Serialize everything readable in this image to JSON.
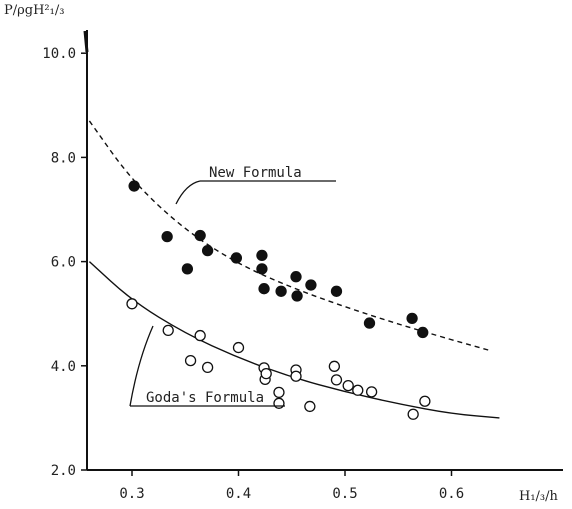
{
  "chart_data": {
    "type": "scatter",
    "title": "",
    "ylabel": "P/ρgH²₁/₃",
    "xlabel": "H₁/₃/h",
    "xlim": [
      0.26,
      0.65
    ],
    "ylim": [
      2.0,
      10.5
    ],
    "x_ticks": [
      "0.3",
      "0.4",
      "0.5",
      "0.6"
    ],
    "x_tick_values": [
      0.3,
      0.4,
      0.5,
      0.6
    ],
    "y_ticks": [
      "2.0",
      "4.0",
      "6.0",
      "8.0",
      "10.0"
    ],
    "y_tick_values": [
      2.0,
      4.0,
      6.0,
      8.0,
      10.0
    ],
    "grid": false,
    "series": [
      {
        "name": "New Formula",
        "marker": "filled-circle",
        "points": [
          [
            0.302,
            7.45
          ],
          [
            0.333,
            6.48
          ],
          [
            0.352,
            5.86
          ],
          [
            0.364,
            6.5
          ],
          [
            0.371,
            6.21
          ],
          [
            0.398,
            6.07
          ],
          [
            0.422,
            6.12
          ],
          [
            0.422,
            5.86
          ],
          [
            0.424,
            5.48
          ],
          [
            0.44,
            5.43
          ],
          [
            0.454,
            5.71
          ],
          [
            0.455,
            5.34
          ],
          [
            0.468,
            5.55
          ],
          [
            0.492,
            5.43
          ],
          [
            0.523,
            4.82
          ],
          [
            0.563,
            4.91
          ],
          [
            0.573,
            4.64
          ]
        ],
        "curve": "dashed",
        "curve_points": [
          [
            0.26,
            8.7
          ],
          [
            0.3,
            7.55
          ],
          [
            0.35,
            6.6
          ],
          [
            0.4,
            5.95
          ],
          [
            0.45,
            5.5
          ],
          [
            0.5,
            5.13
          ],
          [
            0.55,
            4.8
          ],
          [
            0.6,
            4.5
          ],
          [
            0.635,
            4.3
          ]
        ]
      },
      {
        "name": "Goda's Formula",
        "marker": "open-circle",
        "points": [
          [
            0.3,
            5.19
          ],
          [
            0.334,
            4.68
          ],
          [
            0.355,
            4.1
          ],
          [
            0.364,
            4.58
          ],
          [
            0.371,
            3.97
          ],
          [
            0.4,
            4.35
          ],
          [
            0.424,
            3.96
          ],
          [
            0.425,
            3.74
          ],
          [
            0.426,
            3.85
          ],
          [
            0.438,
            3.49
          ],
          [
            0.438,
            3.28
          ],
          [
            0.454,
            3.92
          ],
          [
            0.454,
            3.8
          ],
          [
            0.467,
            3.22
          ],
          [
            0.49,
            3.99
          ],
          [
            0.492,
            3.73
          ],
          [
            0.503,
            3.62
          ],
          [
            0.512,
            3.53
          ],
          [
            0.525,
            3.5
          ],
          [
            0.564,
            3.07
          ],
          [
            0.575,
            3.32
          ]
        ],
        "curve": "solid",
        "curve_points": [
          [
            0.26,
            6.0
          ],
          [
            0.3,
            5.25
          ],
          [
            0.35,
            4.62
          ],
          [
            0.4,
            4.15
          ],
          [
            0.45,
            3.78
          ],
          [
            0.5,
            3.5
          ],
          [
            0.55,
            3.27
          ],
          [
            0.6,
            3.08
          ],
          [
            0.645,
            3.0
          ]
        ]
      }
    ],
    "annotations": [
      "New Formula",
      "Goda's Formula"
    ],
    "legend": "inline-annotations"
  }
}
